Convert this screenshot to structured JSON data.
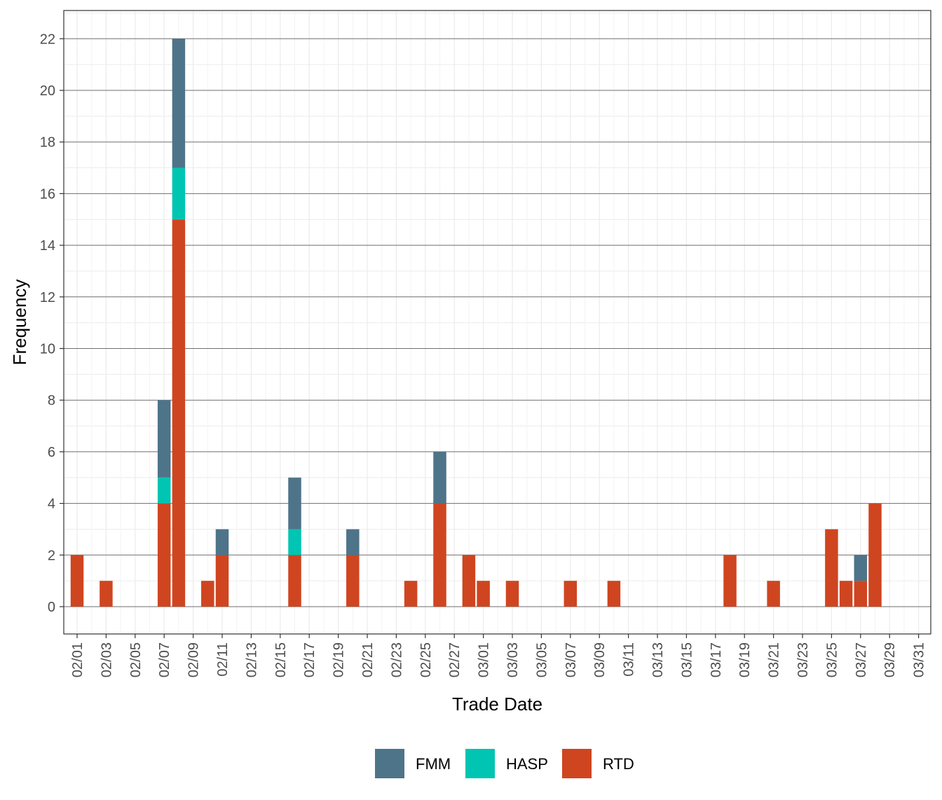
{
  "chart_data": {
    "type": "bar",
    "stacked": true,
    "xlabel": "Trade Date",
    "ylabel": "Frequency",
    "ylim": [
      -1,
      23
    ],
    "y_ticks": [
      0,
      2,
      4,
      6,
      8,
      10,
      12,
      14,
      16,
      18,
      20,
      22
    ],
    "x_tick_labels": [
      "02/01",
      "02/03",
      "02/05",
      "02/07",
      "02/09",
      "02/11",
      "02/13",
      "02/15",
      "02/17",
      "02/19",
      "02/21",
      "02/23",
      "02/25",
      "02/27",
      "03/01",
      "03/03",
      "03/05",
      "03/07",
      "03/09",
      "03/11",
      "03/13",
      "03/15",
      "03/17",
      "03/19",
      "03/21",
      "03/23",
      "03/25",
      "03/27",
      "03/29",
      "03/31"
    ],
    "grid": true,
    "legend_position": "bottom",
    "colors": {
      "FMM": "#4e7489",
      "HASP": "#00c5b2",
      "RTD": "#cf4520"
    },
    "series_order": [
      "RTD",
      "HASP",
      "FMM"
    ],
    "legend": [
      "FMM",
      "HASP",
      "RTD"
    ],
    "data": [
      {
        "date": "02/01",
        "RTD": 2,
        "HASP": 0,
        "FMM": 0
      },
      {
        "date": "02/03",
        "RTD": 1,
        "HASP": 0,
        "FMM": 0
      },
      {
        "date": "02/07",
        "RTD": 4,
        "HASP": 1,
        "FMM": 3
      },
      {
        "date": "02/08",
        "RTD": 15,
        "HASP": 2,
        "FMM": 5
      },
      {
        "date": "02/10",
        "RTD": 1,
        "HASP": 0,
        "FMM": 0
      },
      {
        "date": "02/11",
        "RTD": 2,
        "HASP": 0,
        "FMM": 1
      },
      {
        "date": "02/16",
        "RTD": 2,
        "HASP": 1,
        "FMM": 2
      },
      {
        "date": "02/20",
        "RTD": 2,
        "HASP": 0,
        "FMM": 1
      },
      {
        "date": "02/24",
        "RTD": 1,
        "HASP": 0,
        "FMM": 0
      },
      {
        "date": "02/26",
        "RTD": 4,
        "HASP": 0,
        "FMM": 2
      },
      {
        "date": "02/28",
        "RTD": 2,
        "HASP": 0,
        "FMM": 0
      },
      {
        "date": "03/01",
        "RTD": 1,
        "HASP": 0,
        "FMM": 0
      },
      {
        "date": "03/03",
        "RTD": 1,
        "HASP": 0,
        "FMM": 0
      },
      {
        "date": "03/07",
        "RTD": 1,
        "HASP": 0,
        "FMM": 0
      },
      {
        "date": "03/10",
        "RTD": 1,
        "HASP": 0,
        "FMM": 0
      },
      {
        "date": "03/18",
        "RTD": 2,
        "HASP": 0,
        "FMM": 0
      },
      {
        "date": "03/21",
        "RTD": 1,
        "HASP": 0,
        "FMM": 0
      },
      {
        "date": "03/25",
        "RTD": 3,
        "HASP": 0,
        "FMM": 0
      },
      {
        "date": "03/26",
        "RTD": 1,
        "HASP": 0,
        "FMM": 0
      },
      {
        "date": "03/27",
        "RTD": 1,
        "HASP": 0,
        "FMM": 1
      },
      {
        "date": "03/28",
        "RTD": 4,
        "HASP": 0,
        "FMM": 0
      }
    ]
  }
}
